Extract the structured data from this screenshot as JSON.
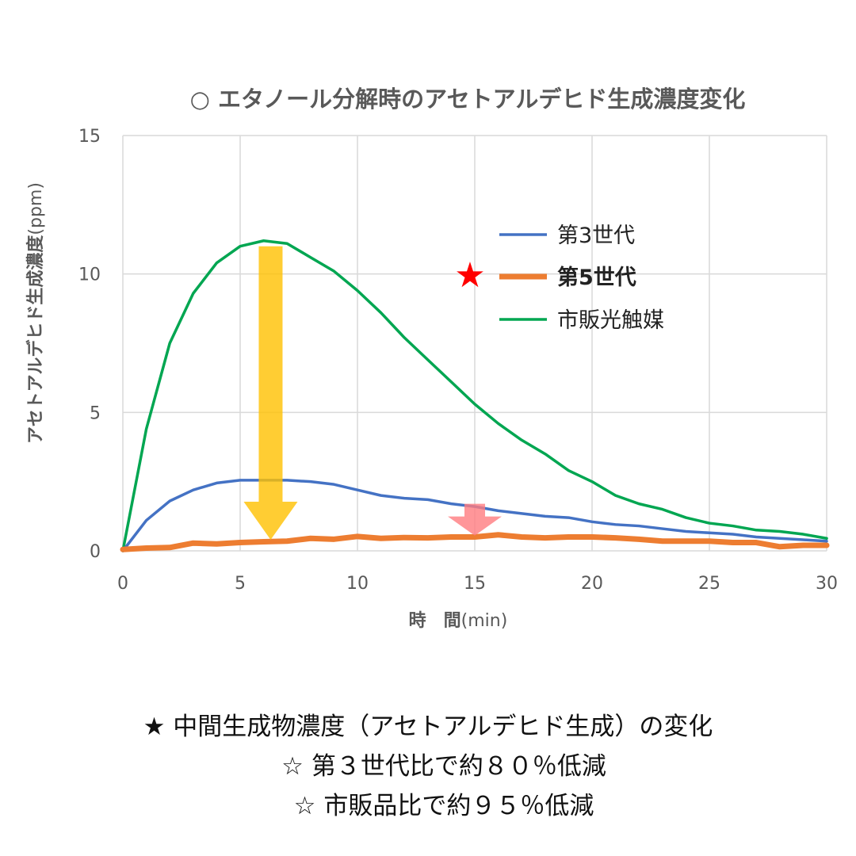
{
  "chart_data": {
    "type": "line",
    "title": "○ エタノール分解時のアセトアルデヒド生成濃度変化",
    "xlabel": "時　間",
    "xlabel_unit": "(min)",
    "ylabel": "アセトアルデヒド生成濃度",
    "ylabel_unit": "(ppm)",
    "xlim": [
      0,
      30
    ],
    "ylim": [
      0,
      15
    ],
    "xticks": [
      "0",
      "5",
      "10",
      "15",
      "20",
      "25",
      "30"
    ],
    "yticks": [
      "0",
      "5",
      "10",
      "15"
    ],
    "grid": true,
    "legend_position": "right",
    "x": [
      0,
      1,
      2,
      3,
      4,
      5,
      6,
      7,
      8,
      9,
      10,
      11,
      12,
      13,
      14,
      15,
      16,
      17,
      18,
      19,
      20,
      21,
      22,
      23,
      24,
      25,
      26,
      27,
      28,
      29,
      30
    ],
    "series": [
      {
        "name": "第3世代",
        "color": "#4472C4",
        "values": [
          0,
          1.1,
          1.8,
          2.2,
          2.45,
          2.55,
          2.55,
          2.55,
          2.5,
          2.4,
          2.2,
          2.0,
          1.9,
          1.85,
          1.7,
          1.6,
          1.45,
          1.35,
          1.25,
          1.2,
          1.05,
          0.95,
          0.9,
          0.8,
          0.7,
          0.65,
          0.6,
          0.5,
          0.45,
          0.4,
          0.35
        ]
      },
      {
        "name": "第5世代",
        "color": "#ED7D31",
        "values": [
          0.05,
          0.1,
          0.12,
          0.28,
          0.25,
          0.3,
          0.33,
          0.35,
          0.45,
          0.42,
          0.52,
          0.45,
          0.48,
          0.47,
          0.5,
          0.5,
          0.58,
          0.5,
          0.47,
          0.5,
          0.5,
          0.47,
          0.42,
          0.35,
          0.35,
          0.35,
          0.3,
          0.3,
          0.15,
          0.2,
          0.2
        ]
      },
      {
        "name": "市販光触媒",
        "color": "#00A651",
        "values": [
          0,
          4.4,
          7.5,
          9.3,
          10.4,
          11.0,
          11.2,
          11.1,
          10.6,
          10.1,
          9.4,
          8.6,
          7.7,
          6.9,
          6.1,
          5.3,
          4.6,
          4.0,
          3.5,
          2.9,
          2.5,
          2.0,
          1.7,
          1.5,
          1.2,
          1.0,
          0.9,
          0.75,
          0.7,
          0.6,
          0.45
        ]
      }
    ],
    "annotations": {
      "highlight_marker": "★",
      "yellow_arrow": {
        "from_x": 6.3,
        "from_y": 11.0,
        "to_y": 0.4,
        "color": "#FFC000"
      },
      "pink_arrow": {
        "x": 15,
        "from_y": 1.7,
        "to_y": 0.55,
        "color": "#FF7C80"
      }
    }
  },
  "notes": [
    "★ 中間生成物濃度（アセトアルデヒド生成）の変化",
    "☆ 第３世代比で約８０％低減",
    "☆ 市販品比で約９５％低減"
  ]
}
